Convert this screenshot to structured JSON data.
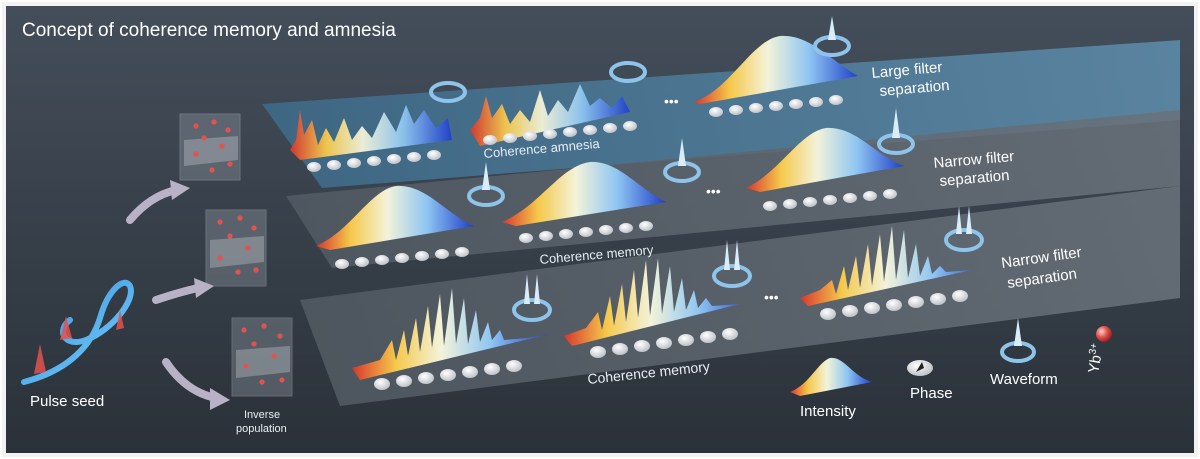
{
  "title": "Concept of coherence memory and amnesia",
  "panels": {
    "top_label": [
      "Large filter",
      "separation"
    ],
    "middle_label": [
      "Narrow filter",
      "separation"
    ],
    "bottom_label": [
      "Narrow filter",
      "separation"
    ],
    "top_caption": "Coherence amnesia",
    "middle_caption": "Coherence memory",
    "bottom_caption": "Coherence memory",
    "ellipsis": "•••"
  },
  "left": {
    "seed_label": "Pulse seed",
    "population_label": [
      "Inverse",
      "population"
    ]
  },
  "legend": {
    "intensity": "Intensity",
    "phase": "Phase",
    "waveform": "Waveform",
    "ion": "Yb",
    "ion_sup": "3+"
  },
  "colors": {
    "background_top": "#3d4652",
    "background_bottom": "#2b323b",
    "frame": "#eeeeee",
    "panel_top": "#4d7692",
    "panel_gray": "#5c636b",
    "ring": "#7fb3da",
    "ion": "#e2524f"
  }
}
